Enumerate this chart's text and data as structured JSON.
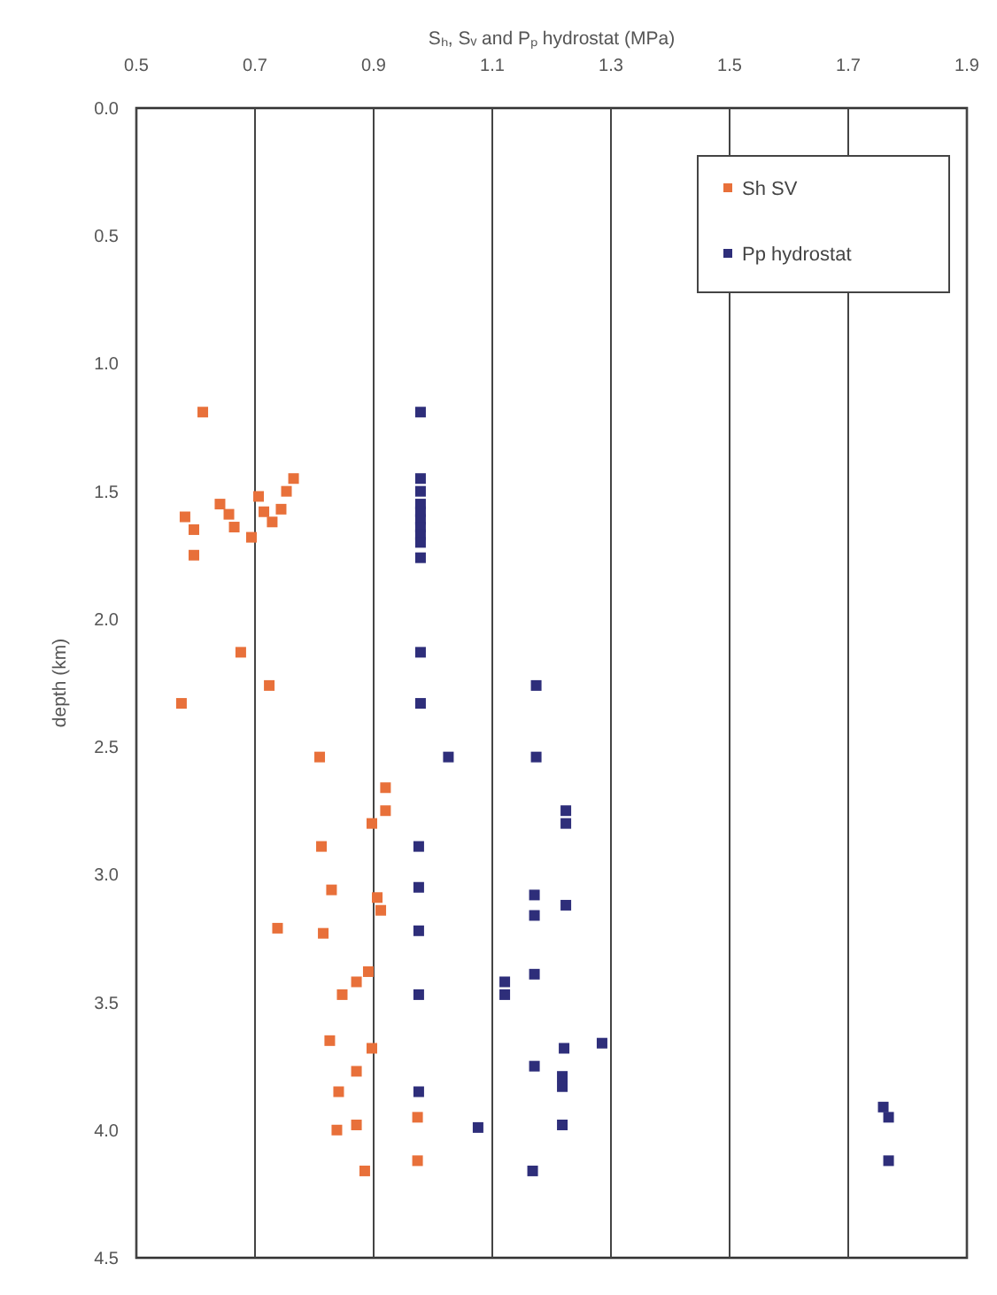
{
  "chart_data": {
    "type": "scatter",
    "xlabel": "Sₕ, Sᵥ and Pₚ hydrostat (MPa)",
    "ylabel": "depth (km)",
    "xlim": [
      0.5,
      1.9
    ],
    "xticks": [
      0.5,
      0.7,
      0.9,
      1.1,
      1.3,
      1.5,
      1.7,
      1.9
    ],
    "ylim": [
      4.5,
      0
    ],
    "yticks": [
      {
        "value": 0,
        "label": "0.0"
      },
      0.5,
      {
        "value": 1,
        "label": "1.0"
      },
      1.5,
      {
        "value": 2,
        "label": "2.0"
      },
      2.5,
      {
        "value": 3,
        "label": "3.0"
      },
      3.5,
      {
        "value": 4,
        "label": "4.0"
      },
      4.5
    ],
    "grid": "x",
    "legend": "top right",
    "marker": "square",
    "series": [
      {
        "name": "Sh SV",
        "color": "#e8703a",
        "x": [
          0.612,
          0.582,
          0.597,
          0.597,
          0.641,
          0.656,
          0.665,
          0.694,
          0.706,
          0.715,
          0.729,
          0.744,
          0.765,
          0.753,
          0.676,
          0.576,
          0.724,
          0.809,
          0.92,
          0.92,
          0.897,
          0.812,
          0.829,
          0.906,
          0.912,
          0.738,
          0.815,
          0.891,
          0.871,
          0.847,
          0.826,
          0.897,
          0.871,
          0.841,
          0.838,
          0.871,
          0.974,
          0.974,
          0.885
        ],
        "values": [
          1.19,
          1.6,
          1.65,
          1.75,
          1.55,
          1.59,
          1.64,
          1.68,
          1.52,
          1.58,
          1.62,
          1.57,
          1.45,
          1.5,
          2.13,
          2.33,
          2.26,
          2.54,
          2.66,
          2.75,
          2.8,
          2.89,
          3.06,
          3.09,
          3.14,
          3.21,
          3.23,
          3.38,
          3.42,
          3.47,
          3.65,
          3.68,
          3.77,
          3.85,
          4.0,
          3.98,
          3.95,
          4.12,
          4.16
        ]
      },
      {
        "name": "Pp hydrostat",
        "color": "#2e2e7a",
        "x": [
          0.979,
          0.979,
          0.979,
          0.979,
          0.979,
          0.979,
          0.979,
          0.979,
          0.979,
          0.979,
          0.979,
          0.979,
          1.026,
          1.174,
          1.174,
          0.976,
          0.976,
          0.976,
          0.976,
          0.976,
          1.076,
          1.224,
          1.224,
          1.171,
          1.171,
          1.224,
          1.171,
          1.121,
          1.121,
          1.285,
          1.221,
          1.171,
          1.218,
          1.218,
          1.218,
          1.168,
          1.759,
          1.768,
          1.768
        ],
        "values": [
          1.19,
          1.45,
          1.5,
          1.55,
          1.58,
          1.61,
          1.64,
          1.67,
          1.7,
          1.76,
          2.13,
          2.33,
          2.54,
          2.26,
          2.54,
          2.89,
          3.05,
          3.22,
          3.47,
          3.85,
          3.99,
          2.75,
          2.8,
          3.08,
          3.16,
          3.12,
          3.39,
          3.42,
          3.47,
          3.66,
          3.68,
          3.75,
          3.79,
          3.83,
          3.98,
          4.16,
          3.91,
          3.95,
          4.12
        ]
      }
    ]
  }
}
